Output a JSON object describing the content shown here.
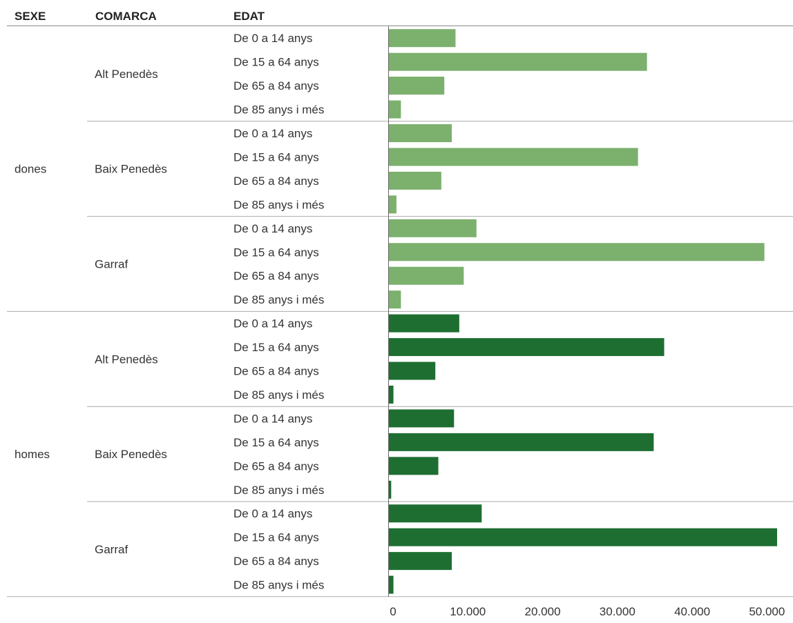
{
  "headers": {
    "sexe": "SEXE",
    "comarca": "COMARCA",
    "edat": "EDAT"
  },
  "colors": {
    "dones": "#7bb06d",
    "homes": "#1e6e32",
    "rule": "#aaaaaa"
  },
  "chart_data": {
    "type": "bar",
    "orientation": "horizontal",
    "xlim": [
      0,
      52000
    ],
    "x_ticks": [
      "0",
      "10.000",
      "20.000",
      "30.000",
      "40.000",
      "50.000"
    ],
    "x_tick_values": [
      0,
      10000,
      20000,
      30000,
      40000,
      50000
    ],
    "groups": [
      {
        "sexe": "dones",
        "comarques": [
          {
            "name": "Alt Penedès",
            "bars": [
              {
                "edat": "De 0 a 14 anys",
                "value": 9000
              },
              {
                "edat": "De 15 a 64 anys",
                "value": 34600
              },
              {
                "edat": "De 65 a 84 anys",
                "value": 7500
              },
              {
                "edat": "De 85 anys i més",
                "value": 1700
              }
            ]
          },
          {
            "name": "Baix Penedès",
            "bars": [
              {
                "edat": "De 0 a 14 anys",
                "value": 8500
              },
              {
                "edat": "De 15 a 64 anys",
                "value": 33400
              },
              {
                "edat": "De 65 a 84 anys",
                "value": 7100
              },
              {
                "edat": "De 85 anys i més",
                "value": 1100
              }
            ]
          },
          {
            "name": "Garraf",
            "bars": [
              {
                "edat": "De 0 a 14 anys",
                "value": 11800
              },
              {
                "edat": "De 15 a 64 anys",
                "value": 50300
              },
              {
                "edat": "De 65 a 84 anys",
                "value": 10100
              },
              {
                "edat": "De 85 anys i més",
                "value": 1700
              }
            ]
          }
        ]
      },
      {
        "sexe": "homes",
        "comarques": [
          {
            "name": "Alt Penedès",
            "bars": [
              {
                "edat": "De 0 a 14 anys",
                "value": 9500
              },
              {
                "edat": "De 15 a 64 anys",
                "value": 36900
              },
              {
                "edat": "De 65 a 84 anys",
                "value": 6300
              },
              {
                "edat": "De 85 anys i més",
                "value": 700
              }
            ]
          },
          {
            "name": "Baix Penedès",
            "bars": [
              {
                "edat": "De 0 a 14 anys",
                "value": 8800
              },
              {
                "edat": "De 15 a 64 anys",
                "value": 35500
              },
              {
                "edat": "De 65 a 84 anys",
                "value": 6700
              },
              {
                "edat": "De 85 anys i més",
                "value": 400
              }
            ]
          },
          {
            "name": "Garraf",
            "bars": [
              {
                "edat": "De 0 a 14 anys",
                "value": 12500
              },
              {
                "edat": "De 15 a 64 anys",
                "value": 52000
              },
              {
                "edat": "De 65 a 84 anys",
                "value": 8500
              },
              {
                "edat": "De 85 anys i més",
                "value": 700
              }
            ]
          }
        ]
      }
    ]
  }
}
